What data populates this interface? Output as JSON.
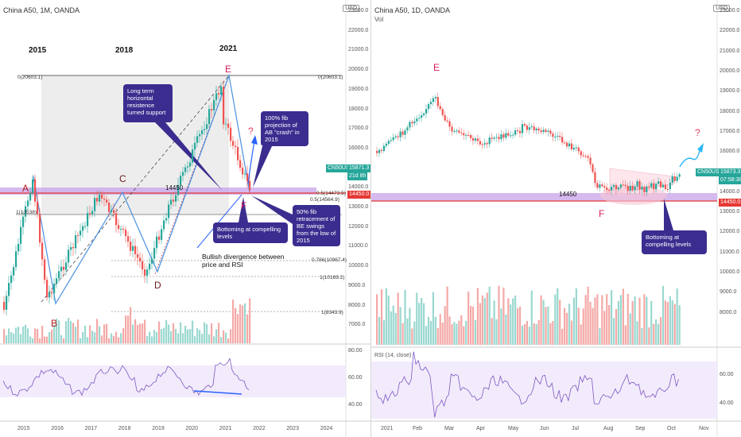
{
  "left": {
    "title": "China A50, 1M, OANDA",
    "usd": "USD",
    "years": [
      "2015",
      "2018",
      "2021"
    ],
    "points": {
      "A": "A",
      "B": "B",
      "C": "C",
      "D": "D",
      "E": "E",
      "F": "F"
    },
    "level_label": "14450",
    "annotations": {
      "resistance": "Long term horizontal resistence turned support",
      "projection": "100% fib projection of AB \"crash\" in 2015",
      "bottoming": "Bottoming at compelling levels",
      "retracement": "50% fib retracement of BE swings from the low of 2015",
      "divergence": "Bullish divergence between price and RSI"
    },
    "question": "?",
    "fib_labels": [
      "0(20603.1)",
      "0(20603.1)",
      "0.5(14473.5)",
      "0.5(14564.9)",
      "1(13538)",
      "0.786(10967.4)",
      "1(10169.2)",
      "1(8343.9)"
    ],
    "price_axis": [
      "23000.0",
      "22000.0",
      "21000.0",
      "20000.0",
      "19000.0",
      "18000.0",
      "17000.0",
      "16000.0",
      "15000.0",
      "14000.0",
      "13000.0",
      "12000.0",
      "11000.0",
      "10000.0",
      "9000.0",
      "8000.0",
      "7000.0"
    ],
    "price_tag_symbol": "CN50USD",
    "price_tag_value": "15871.3",
    "price_tag_sub": "21d 8h",
    "level_tag": "14450.0",
    "rsi_axis": [
      "80.00",
      "60.00",
      "40.00"
    ],
    "time_axis": [
      "2015",
      "2016",
      "2017",
      "2018",
      "2019",
      "2020",
      "2021",
      "2022",
      "2023",
      "2024"
    ]
  },
  "right": {
    "title": "China A50, 1D, OANDA",
    "vol": "Vol",
    "usd": "USD",
    "points": {
      "E": "E",
      "F": "F"
    },
    "level_label": "14450",
    "annotations": {
      "bottoming": "Bottoming at compelling levels"
    },
    "question": "?",
    "price_axis": [
      "23000.0",
      "22000.0",
      "21000.0",
      "20000.0",
      "19000.0",
      "18000.0",
      "17000.0",
      "16000.0",
      "15000.0",
      "14000.0",
      "13000.0",
      "12000.0",
      "11000.0",
      "10000.0",
      "9000.0",
      "8000.0"
    ],
    "price_tag_symbol": "CN50USD",
    "price_tag_value": "15873.3",
    "price_tag_sub": "07:58:38",
    "level_tag": "14450.0",
    "rsi_title": "RSI (14, close)",
    "rsi_axis": [
      "60.00",
      "40.00"
    ],
    "time_axis": [
      "2021",
      "Feb",
      "Mar",
      "Apr",
      "May",
      "Jun",
      "Jul",
      "Aug",
      "Sep",
      "Oct",
      "Nov"
    ]
  },
  "colors": {
    "up": "#26a69a",
    "down": "#ef5350",
    "annotation": "#3a2d8f",
    "level": "#e53935",
    "zone": "#c8a2e8",
    "rsi": "#7e57c2",
    "trend": "#2962ff"
  }
}
